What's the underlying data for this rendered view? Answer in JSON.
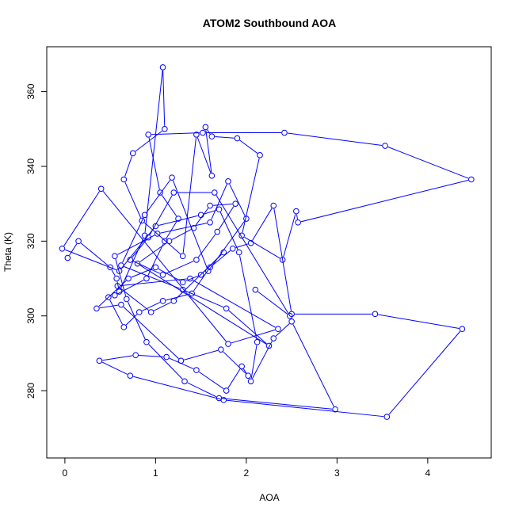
{
  "chart_data": {
    "type": "line",
    "title": "ATOM2 Southbound AOA",
    "xlabel": "AOA",
    "ylabel": "Theta (K)",
    "xlim": [
      -0.2,
      4.7
    ],
    "ylim": [
      262,
      372
    ],
    "x_ticks": [
      0,
      1,
      2,
      3,
      4
    ],
    "y_ticks": [
      280,
      300,
      320,
      340,
      360
    ],
    "x_tick_labels": [
      "0",
      "1",
      "2",
      "3",
      "4"
    ],
    "y_tick_labels": [
      "280",
      "300",
      "320",
      "340",
      "360"
    ],
    "series_color": "#0000ff",
    "marker": "open-circle",
    "grid": false,
    "x": [
      0.03,
      0.15,
      0.5,
      0.57,
      0.6,
      0.88,
      1.08,
      1.1,
      0.75,
      0.65,
      0.85,
      1.3,
      1.45,
      1.62,
      1.55,
      1.62,
      1.9,
      2.15,
      1.95,
      2.4,
      2.55,
      2.57,
      4.48,
      3.53,
      2.42,
      1.52,
      0.92,
      1.05,
      1.25,
      1.1,
      0.9,
      0.55,
      0.48,
      0.65,
      0.82,
      1.08,
      1.4,
      1.6,
      1.85,
      2.05,
      2.3,
      2.5,
      3.42,
      4.38,
      3.55,
      1.75,
      0.72,
      0.38,
      0.78,
      1.12,
      1.45,
      1.78,
      1.95,
      2.02,
      1.72,
      1.28,
      0.62,
      0.35,
      0.7,
      1.0,
      1.3,
      1.5,
      1.75,
      1.2,
      0.95,
      0.58,
      1.38,
      2.35,
      1.8,
      0.4,
      -0.03,
      0.6,
      1.0,
      1.5,
      1.7,
      1.92,
      2.12,
      2.05,
      2.3,
      2.5,
      2.98,
      1.7,
      1.32,
      0.9,
      0.68,
      0.55,
      1.02,
      1.6,
      1.8,
      2.0,
      1.58,
      1.18,
      0.88,
      0.62,
      1.3,
      1.78,
      2.25,
      0.8,
      1.15,
      1.42,
      1.6,
      1.88,
      1.68,
      1.45,
      1.08,
      0.72,
      0.92,
      1.2,
      1.65,
      2.48,
      2.1
    ],
    "y": [
      315.5,
      320.0,
      313.0,
      310.0,
      306.5,
      321.5,
      366.5,
      350.0,
      343.5,
      336.5,
      325.5,
      316.0,
      348.5,
      337.5,
      350.5,
      348.0,
      347.5,
      343.0,
      321.5,
      315.0,
      328.0,
      325.0,
      336.5,
      345.5,
      349.0,
      349.0,
      348.5,
      333.0,
      326.0,
      320.0,
      310.0,
      305.5,
      305.0,
      297.0,
      301.0,
      304.0,
      306.0,
      313.0,
      318.0,
      319.5,
      329.5,
      300.5,
      300.5,
      296.5,
      273.0,
      277.5,
      284.0,
      288.0,
      289.5,
      289.0,
      285.5,
      280.0,
      286.5,
      284.0,
      291.0,
      288.0,
      303.0,
      302.0,
      310.0,
      313.0,
      309.0,
      311.0,
      317.0,
      304.0,
      301.0,
      308.0,
      310.0,
      296.5,
      292.5,
      334.0,
      318.0,
      312.0,
      324.0,
      327.0,
      328.5,
      317.0,
      293.0,
      282.5,
      294.0,
      298.5,
      275.0,
      278.0,
      282.5,
      293.0,
      304.5,
      316.0,
      322.0,
      325.0,
      336.0,
      326.0,
      312.0,
      337.0,
      327.0,
      313.5,
      307.0,
      302.0,
      292.0,
      314.0,
      320.0,
      323.5,
      329.5,
      330.0,
      322.5,
      315.0,
      311.0,
      315.0,
      321.0,
      333.0,
      333.0,
      300.0,
      307.0
    ]
  }
}
